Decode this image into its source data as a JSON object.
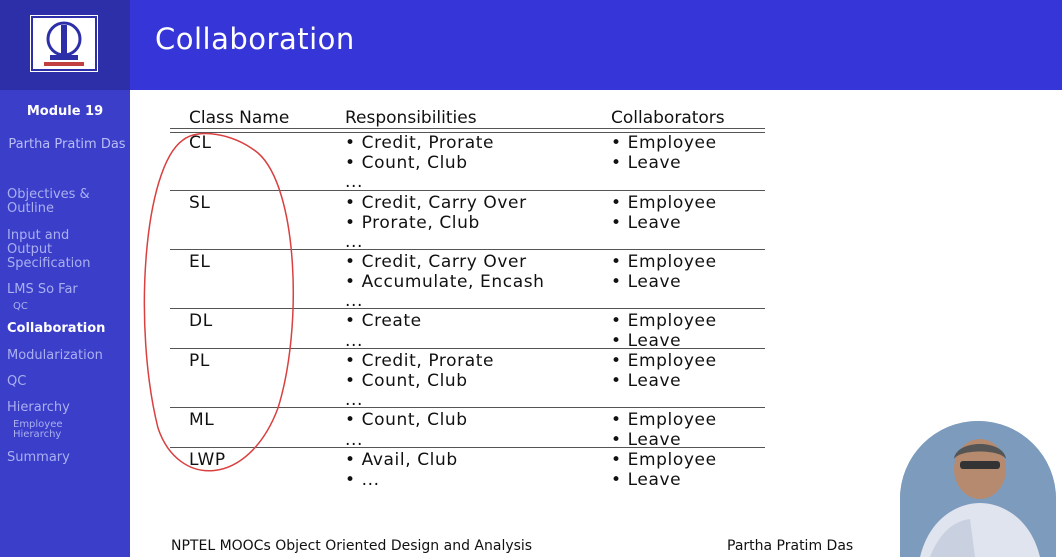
{
  "slide": {
    "title": "Collaboration",
    "module": "Module 19",
    "author": "Partha Pratim Das"
  },
  "sidebar": {
    "items": [
      {
        "label": "Objectives & Outline"
      },
      {
        "label": "Input and Output Specification"
      },
      {
        "label": "LMS So Far"
      },
      {
        "label": "QC"
      },
      {
        "label": "Collaboration"
      },
      {
        "label": "Modularization"
      },
      {
        "label": "QC"
      },
      {
        "label": "Hierarchy"
      },
      {
        "label": "Employee Hierarchy"
      },
      {
        "label": "Summary"
      }
    ]
  },
  "table": {
    "headers": [
      "Class Name",
      "Responsibilities",
      "Collaborators"
    ],
    "rows": [
      {
        "name": "CL",
        "resp": [
          "• Credit, Prorate",
          "• Count, Club",
          "..."
        ],
        "collab": [
          "• Employee",
          "• Leave"
        ]
      },
      {
        "name": "SL",
        "resp": [
          "• Credit, Carry Over",
          "• Prorate, Club",
          "..."
        ],
        "collab": [
          "• Employee",
          "• Leave"
        ]
      },
      {
        "name": "EL",
        "resp": [
          "• Credit, Carry Over",
          "• Accumulate, Encash",
          "..."
        ],
        "collab": [
          "• Employee",
          "• Leave"
        ]
      },
      {
        "name": "DL",
        "resp": [
          "• Create",
          "..."
        ],
        "collab": [
          "• Employee",
          "• Leave"
        ]
      },
      {
        "name": "PL",
        "resp": [
          "• Credit, Prorate",
          "• Count, Club",
          "..."
        ],
        "collab": [
          "• Employee",
          "• Leave"
        ]
      },
      {
        "name": "ML",
        "resp": [
          "• Count, Club",
          "..."
        ],
        "collab": [
          "• Employee",
          "• Leave"
        ]
      },
      {
        "name": "LWP",
        "resp": [
          "• Avail, Club",
          "• ..."
        ],
        "collab": [
          "• Employee",
          "• Leave"
        ]
      }
    ]
  },
  "footer": {
    "left": "NPTEL MOOCs Object Oriented Design and Analysis",
    "right": "Partha Pratim Das"
  },
  "colors": {
    "header": "#3535d8",
    "sidebar": "#3a3ec9",
    "annotation": "#d94040"
  }
}
